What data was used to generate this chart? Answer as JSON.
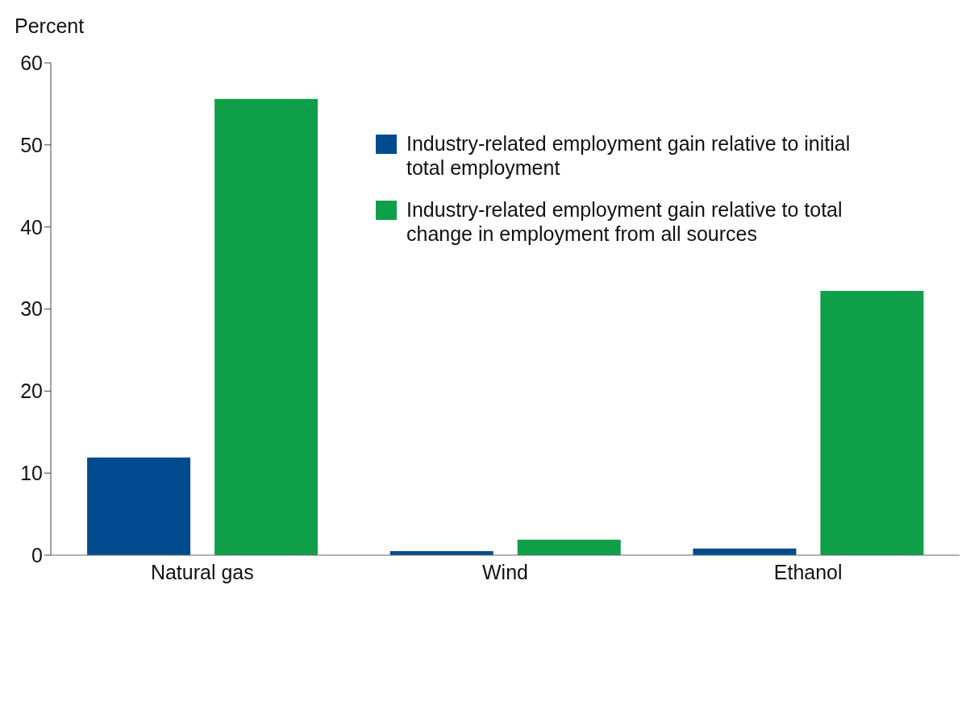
{
  "chart_data": {
    "type": "bar",
    "ylabel": "Percent",
    "categories": [
      "Natural gas",
      "Wind",
      "Ethanol"
    ],
    "series": [
      {
        "name": "Industry-related employment gain relative to initial total employment",
        "color": "#004b8d",
        "values": [
          11.9,
          0.5,
          0.8
        ]
      },
      {
        "name": "Industry-related employment gain relative to total change in employment from all sources",
        "color": "#0e9f48",
        "values": [
          55.6,
          1.9,
          32.2
        ]
      }
    ],
    "ylim": [
      0,
      60
    ],
    "yticks": [
      0,
      10,
      20,
      30,
      40,
      50,
      60
    ],
    "grid": false,
    "legend": "top right"
  }
}
